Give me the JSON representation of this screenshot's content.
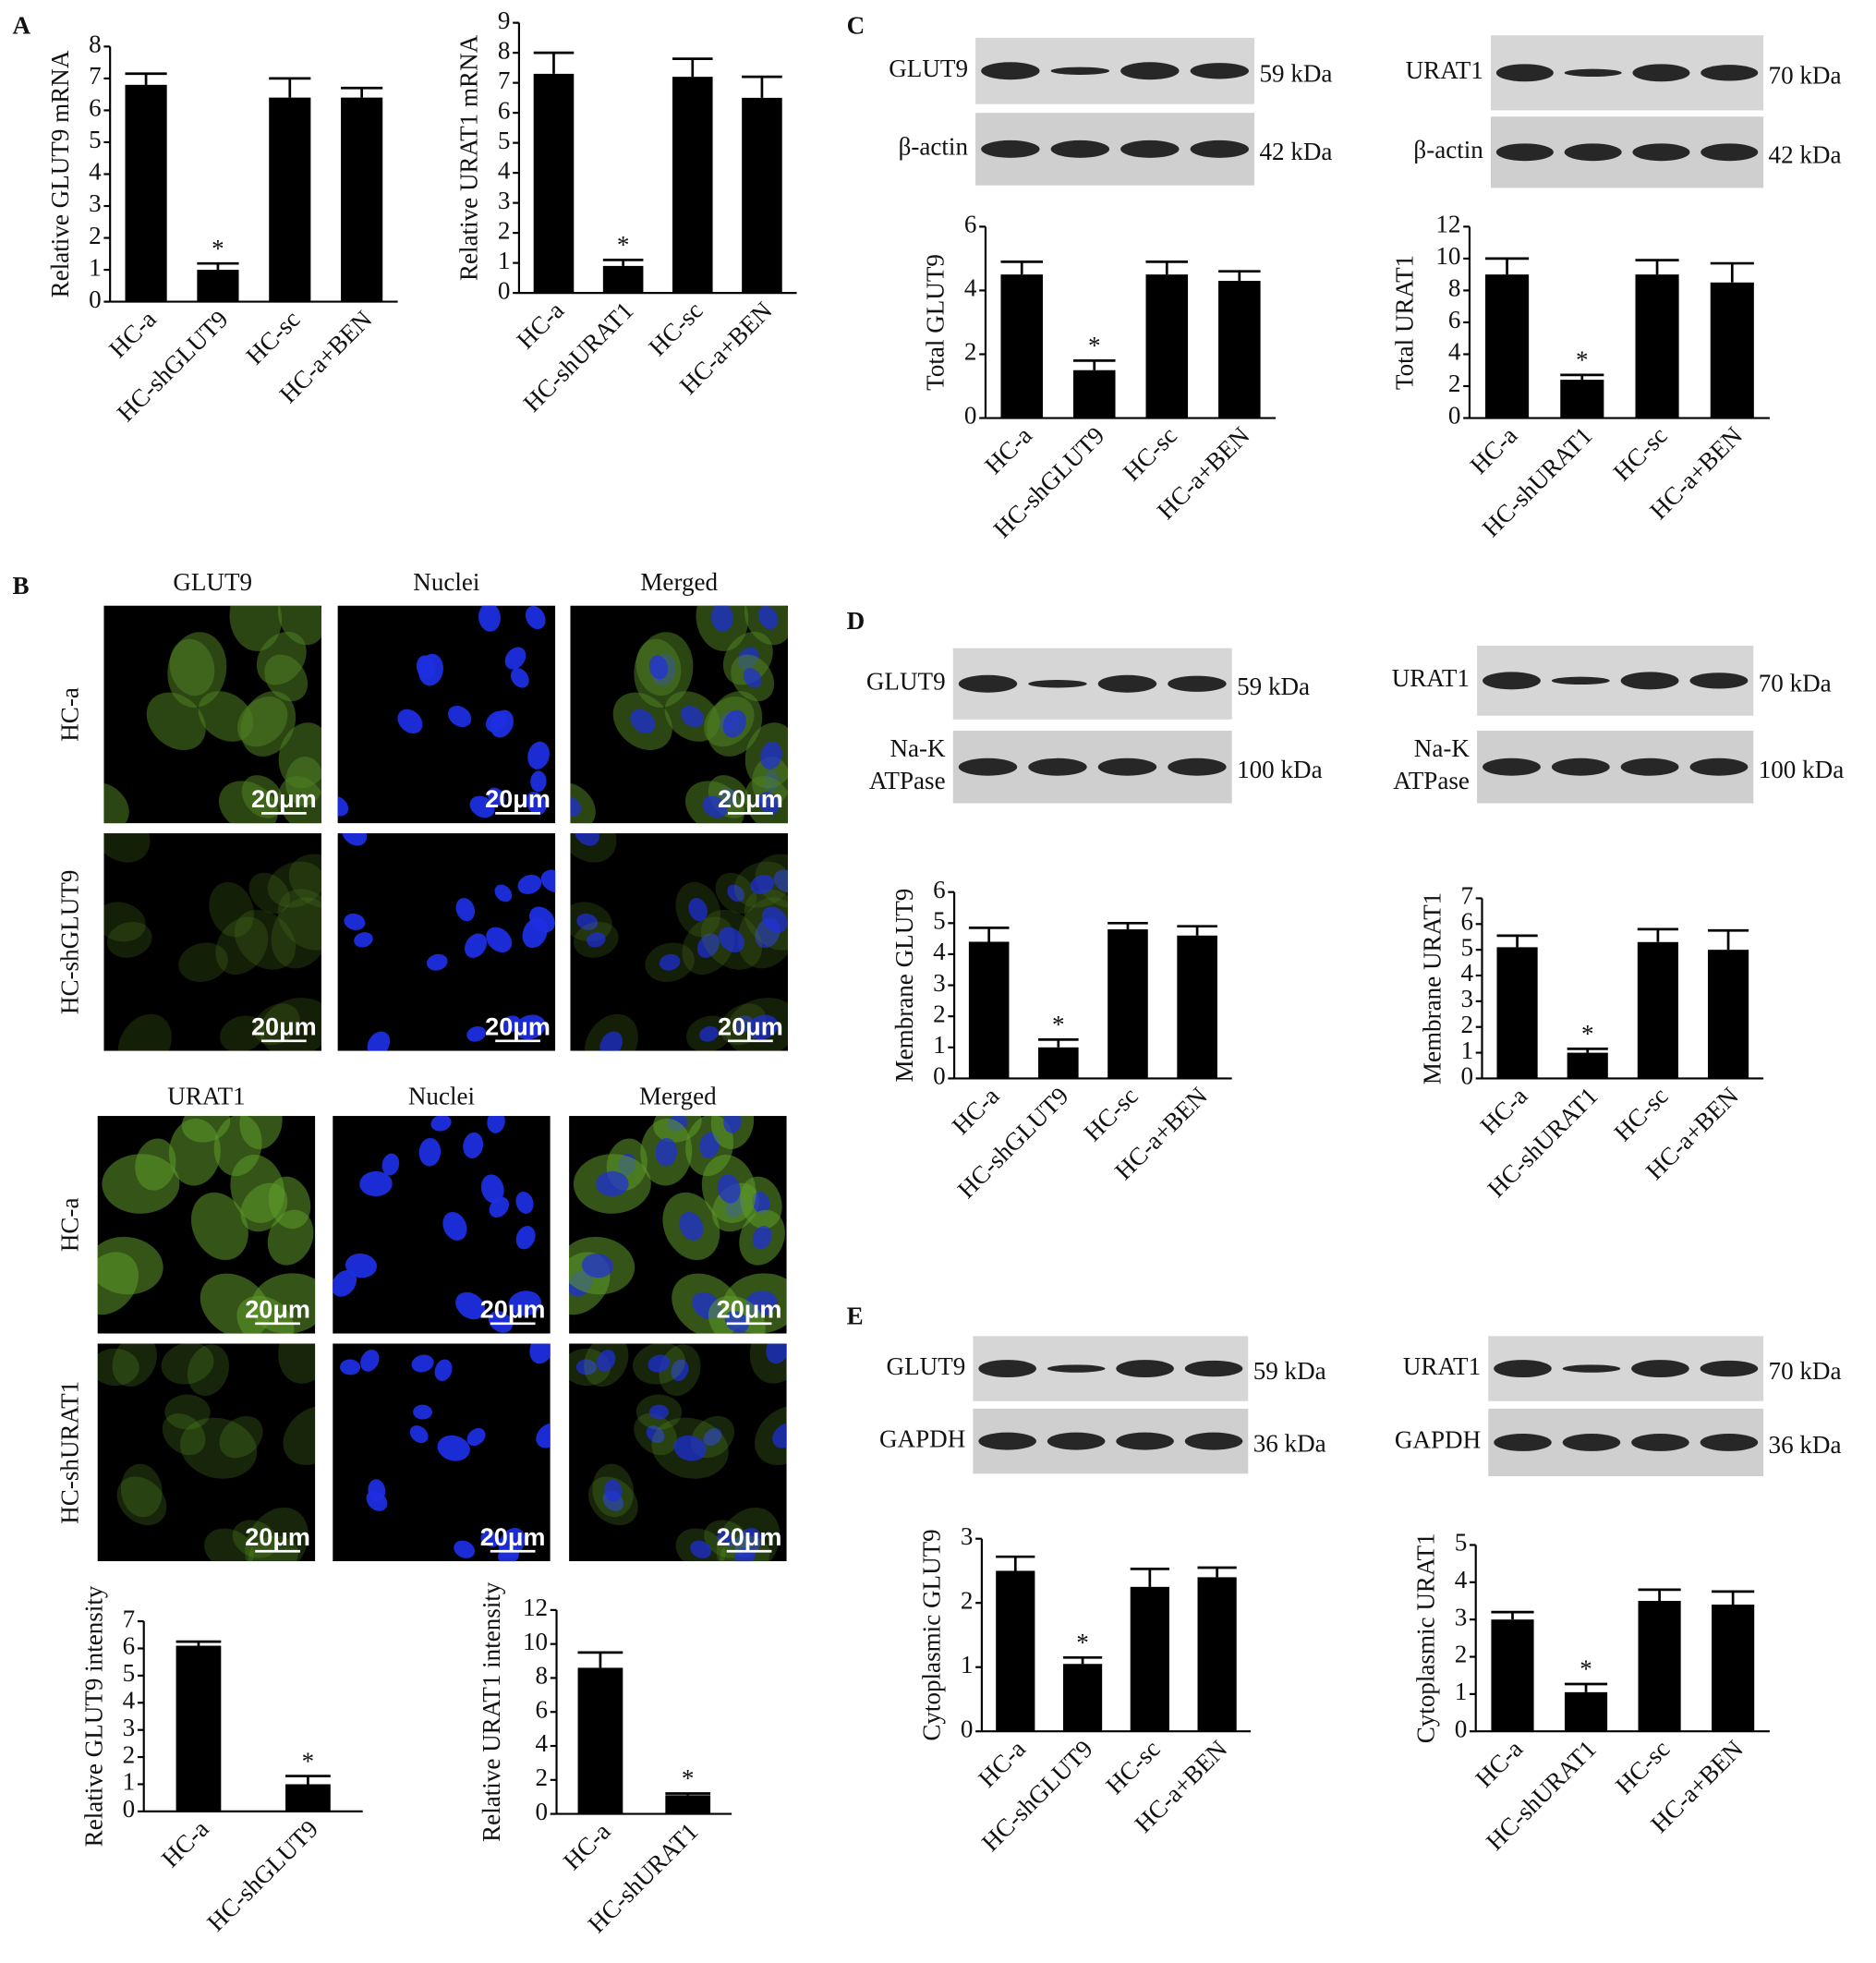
{
  "panel_labels": [
    "A",
    "B",
    "C",
    "D",
    "E"
  ],
  "chart_data": [
    {
      "type": "bar",
      "ylabel": "Relative GLUT9 mRNA",
      "categories": [
        "HC-a",
        "HC-shGLUT9",
        "HC-sc",
        "HC-a+BEN"
      ],
      "values": [
        6.8,
        1.0,
        6.4,
        6.4
      ],
      "errors": [
        0.35,
        0.2,
        0.6,
        0.3
      ],
      "ylim": [
        0,
        8
      ],
      "yticks": [
        0,
        1,
        2,
        3,
        4,
        5,
        6,
        7,
        8
      ],
      "color": "#000000",
      "annotations": [
        {
          "text": "*",
          "category": "HC-shGLUT9"
        }
      ]
    },
    {
      "type": "bar",
      "ylabel": "Relative URAT1 mRNA",
      "categories": [
        "HC-a",
        "HC-shURAT1",
        "HC-sc",
        "HC-a+BEN"
      ],
      "values": [
        7.3,
        0.9,
        7.2,
        6.5
      ],
      "errors": [
        0.7,
        0.2,
        0.6,
        0.7
      ],
      "ylim": [
        0,
        9
      ],
      "yticks": [
        0,
        1,
        2,
        3,
        4,
        5,
        6,
        7,
        8,
        9
      ],
      "color": "#000000",
      "annotations": [
        {
          "text": "*",
          "category": "HC-shURAT1"
        }
      ]
    },
    {
      "type": "bar",
      "ylabel": "Total GLUT9",
      "categories": [
        "HC-a",
        "HC-shGLUT9",
        "HC-sc",
        "HC-a+BEN"
      ],
      "values": [
        4.5,
        1.5,
        4.5,
        4.3
      ],
      "errors": [
        0.4,
        0.3,
        0.4,
        0.3
      ],
      "ylim": [
        0,
        6
      ],
      "yticks": [
        0,
        2,
        4,
        6
      ],
      "color": "#000000",
      "annotations": [
        {
          "text": "*",
          "category": "HC-shGLUT9"
        }
      ]
    },
    {
      "type": "bar",
      "ylabel": "Total URAT1",
      "categories": [
        "HC-a",
        "HC-shURAT1",
        "HC-sc",
        "HC-a+BEN"
      ],
      "values": [
        9.0,
        2.4,
        9.0,
        8.5
      ],
      "errors": [
        1.0,
        0.3,
        0.9,
        1.2
      ],
      "ylim": [
        0,
        12
      ],
      "yticks": [
        0,
        2,
        4,
        6,
        8,
        10,
        12
      ],
      "color": "#000000",
      "annotations": [
        {
          "text": "*",
          "category": "HC-shURAT1"
        }
      ]
    },
    {
      "type": "bar",
      "ylabel": "Relative GLUT9 intensity",
      "categories": [
        "HC-a",
        "HC-shGLUT9"
      ],
      "values": [
        6.1,
        1.0
      ],
      "errors": [
        0.15,
        0.3
      ],
      "ylim": [
        0,
        7
      ],
      "yticks": [
        0,
        1,
        2,
        3,
        4,
        5,
        6,
        7
      ],
      "color": "#000000",
      "annotations": [
        {
          "text": "*",
          "category": "HC-shGLUT9"
        }
      ]
    },
    {
      "type": "bar",
      "ylabel": "Relative URAT1 intensity",
      "categories": [
        "HC-a",
        "HC-shURAT1"
      ],
      "values": [
        8.6,
        1.1
      ],
      "errors": [
        0.9,
        0.1
      ],
      "ylim": [
        0,
        12
      ],
      "yticks": [
        0,
        2,
        4,
        6,
        8,
        10,
        12
      ],
      "color": "#000000",
      "annotations": [
        {
          "text": "*",
          "category": "HC-shURAT1"
        }
      ]
    },
    {
      "type": "bar",
      "ylabel": "Membrane GLUT9",
      "categories": [
        "HC-a",
        "HC-shGLUT9",
        "HC-sc",
        "HC-a+BEN"
      ],
      "values": [
        4.4,
        1.0,
        4.8,
        4.6
      ],
      "errors": [
        0.45,
        0.25,
        0.2,
        0.3
      ],
      "ylim": [
        0,
        6
      ],
      "yticks": [
        0,
        1,
        2,
        3,
        4,
        5,
        6
      ],
      "color": "#000000",
      "annotations": [
        {
          "text": "*",
          "category": "HC-shGLUT9"
        }
      ]
    },
    {
      "type": "bar",
      "ylabel": "Membrane URAT1",
      "categories": [
        "HC-a",
        "HC-shURAT1",
        "HC-sc",
        "HC-a+BEN"
      ],
      "values": [
        5.1,
        1.0,
        5.3,
        5.0
      ],
      "errors": [
        0.45,
        0.15,
        0.5,
        0.75
      ],
      "ylim": [
        0,
        7
      ],
      "yticks": [
        0,
        1,
        2,
        3,
        4,
        5,
        6,
        7
      ],
      "color": "#000000",
      "annotations": [
        {
          "text": "*",
          "category": "HC-shURAT1"
        }
      ]
    },
    {
      "type": "bar",
      "ylabel": "Cytoplasmic GLUT9",
      "categories": [
        "HC-a",
        "HC-shGLUT9",
        "HC-sc",
        "HC-a+BEN"
      ],
      "values": [
        2.5,
        1.05,
        2.25,
        2.4
      ],
      "errors": [
        0.22,
        0.1,
        0.28,
        0.15
      ],
      "ylim": [
        0,
        3
      ],
      "yticks": [
        0,
        1,
        2,
        3
      ],
      "color": "#000000",
      "annotations": [
        {
          "text": "*",
          "category": "HC-shGLUT9"
        }
      ]
    },
    {
      "type": "bar",
      "ylabel": "Cytoplasmic URAT1",
      "categories": [
        "HC-a",
        "HC-shURAT1",
        "HC-sc",
        "HC-a+BEN"
      ],
      "values": [
        3.0,
        1.05,
        3.5,
        3.4
      ],
      "errors": [
        0.2,
        0.22,
        0.3,
        0.35
      ],
      "ylim": [
        0,
        5
      ],
      "yticks": [
        0,
        1,
        2,
        3,
        4,
        5
      ],
      "color": "#000000",
      "annotations": [
        {
          "text": "*",
          "category": "HC-shURAT1"
        }
      ]
    }
  ],
  "blots": [
    {
      "rows": [
        {
          "label": [
            "GLUT9"
          ],
          "size": "59 kDa"
        },
        {
          "label": [
            "β-actin"
          ],
          "size": "42 kDa"
        }
      ]
    },
    {
      "rows": [
        {
          "label": [
            "URAT1"
          ],
          "size": "70 kDa"
        },
        {
          "label": [
            "β-actin"
          ],
          "size": "42 kDa"
        }
      ]
    },
    {
      "rows": [
        {
          "label": [
            "GLUT9"
          ],
          "size": "59 kDa"
        },
        {
          "label": [
            "Na-K",
            "ATPase"
          ],
          "size": "100 kDa"
        }
      ]
    },
    {
      "rows": [
        {
          "label": [
            "URAT1"
          ],
          "size": "70 kDa"
        },
        {
          "label": [
            "Na-K",
            "ATPase"
          ],
          "size": "100 kDa"
        }
      ]
    },
    {
      "rows": [
        {
          "label": [
            "GLUT9"
          ],
          "size": "59 kDa"
        },
        {
          "label": [
            "GAPDH"
          ],
          "size": "36 kDa"
        }
      ]
    },
    {
      "rows": [
        {
          "label": [
            "URAT1"
          ],
          "size": "70 kDa"
        },
        {
          "label": [
            "GAPDH"
          ],
          "size": "36 kDa"
        }
      ]
    }
  ],
  "micrographs": [
    {
      "columns": [
        "GLUT9",
        "Nuclei",
        "Merged"
      ],
      "rows": [
        "HC-a",
        "HC-shGLUT9"
      ],
      "scale_bar": "20μm"
    },
    {
      "columns": [
        "URAT1",
        "Nuclei",
        "Merged"
      ],
      "rows": [
        "HC-a",
        "HC-shURAT1"
      ],
      "scale_bar": "20μm"
    }
  ]
}
